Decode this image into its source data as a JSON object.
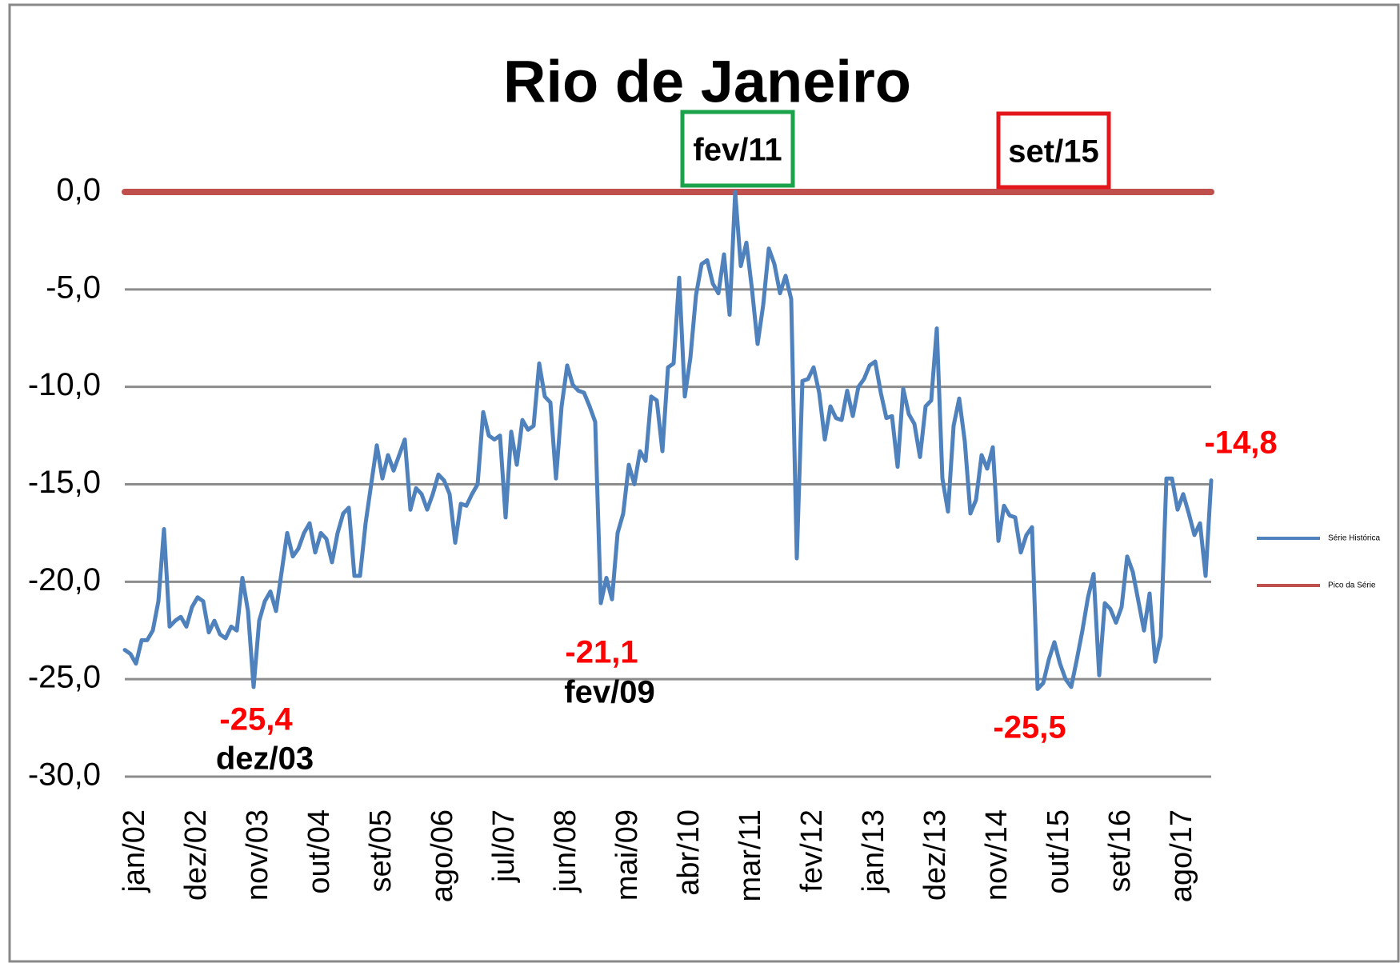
{
  "chart_data": {
    "type": "line",
    "title": "Rio de Janeiro",
    "categories": [
      "jan/02",
      null,
      null,
      null,
      null,
      null,
      null,
      null,
      null,
      null,
      null,
      "dez/02",
      null,
      null,
      null,
      null,
      null,
      null,
      null,
      null,
      null,
      null,
      "nov/03",
      null,
      null,
      null,
      null,
      null,
      null,
      null,
      null,
      null,
      null,
      "out/04",
      null,
      null,
      null,
      null,
      null,
      null,
      null,
      null,
      null,
      null,
      "set/05",
      null,
      null,
      null,
      null,
      null,
      null,
      null,
      null,
      null,
      null,
      "ago/06",
      null,
      null,
      null,
      null,
      null,
      null,
      null,
      null,
      null,
      null,
      "jul/07",
      null,
      null,
      null,
      null,
      null,
      null,
      null,
      null,
      null,
      null,
      "jun/08",
      null,
      null,
      null,
      null,
      null,
      null,
      null,
      null,
      null,
      null,
      "mai/09",
      null,
      null,
      null,
      null,
      null,
      null,
      null,
      null,
      null,
      null,
      "abr/10",
      null,
      null,
      null,
      null,
      null,
      null,
      null,
      null,
      null,
      null,
      "mar/11",
      null,
      null,
      null,
      null,
      null,
      null,
      null,
      null,
      null,
      null,
      "fev/12",
      null,
      null,
      null,
      null,
      null,
      null,
      null,
      null,
      null,
      null,
      "jan/13",
      null,
      null,
      null,
      null,
      null,
      null,
      null,
      null,
      null,
      null,
      "dez/13",
      null,
      null,
      null,
      null,
      null,
      null,
      null,
      null,
      null,
      null,
      "nov/14",
      null,
      null,
      null,
      null,
      null,
      null,
      null,
      null,
      null,
      null,
      "out/15",
      null,
      null,
      null,
      null,
      null,
      null,
      null,
      null,
      null,
      null,
      "set/16",
      null,
      null,
      null,
      null,
      null,
      null,
      null,
      null,
      null,
      null,
      "ago/17",
      null,
      null,
      null,
      null,
      null,
      null,
      null
    ],
    "series": [
      {
        "name": "Série Histórica",
        "color": "#4f81bd",
        "values": [
          -23.5,
          -23.7,
          -24.2,
          -23.0,
          -23.0,
          -22.5,
          -21.0,
          -17.3,
          -22.3,
          -22.0,
          -21.8,
          -22.3,
          -21.3,
          -20.8,
          -21.0,
          -22.6,
          -22.0,
          -22.7,
          -22.9,
          -22.3,
          -22.5,
          -19.8,
          -21.5,
          -25.4,
          -22.0,
          -21.0,
          -20.5,
          -21.5,
          -19.5,
          -17.5,
          -18.7,
          -18.3,
          -17.5,
          -17.0,
          -18.5,
          -17.5,
          -17.8,
          -19.0,
          -17.5,
          -16.5,
          -16.2,
          -19.7,
          -19.7,
          -17.0,
          -15.0,
          -13.0,
          -14.7,
          -13.5,
          -14.3,
          -13.5,
          -12.7,
          -16.3,
          -15.2,
          -15.5,
          -16.3,
          -15.5,
          -14.5,
          -14.8,
          -15.5,
          -18.0,
          -16.0,
          -16.1,
          -15.5,
          -15.0,
          -11.3,
          -12.5,
          -12.7,
          -12.5,
          -16.7,
          -12.3,
          -14.0,
          -11.7,
          -12.2,
          -12.0,
          -8.8,
          -10.5,
          -10.8,
          -14.7,
          -11.0,
          -8.9,
          -9.9,
          -10.2,
          -10.3,
          -11.0,
          -11.8,
          -21.1,
          -19.8,
          -20.9,
          -17.5,
          -16.5,
          -14.0,
          -15.0,
          -13.3,
          -13.8,
          -10.5,
          -10.7,
          -13.3,
          -9.0,
          -8.8,
          -4.4,
          -10.5,
          -8.5,
          -5.3,
          -3.7,
          -3.5,
          -4.7,
          -5.2,
          -3.2,
          -6.3,
          0.0,
          -3.8,
          -2.6,
          -5.0,
          -7.8,
          -5.8,
          -2.9,
          -3.7,
          -5.2,
          -4.3,
          -5.5,
          -18.8,
          -9.7,
          -9.6,
          -9.0,
          -10.3,
          -12.7,
          -11.0,
          -11.6,
          -11.7,
          -10.2,
          -11.5,
          -10.0,
          -9.6,
          -8.9,
          -8.7,
          -10.3,
          -11.6,
          -11.5,
          -14.1,
          -10.1,
          -11.4,
          -11.9,
          -13.6,
          -11.0,
          -10.7,
          -7.0,
          -14.7,
          -16.4,
          -12.0,
          -10.6,
          -12.8,
          -16.5,
          -15.8,
          -13.5,
          -14.2,
          -13.1,
          -17.9,
          -16.1,
          -16.6,
          -16.7,
          -18.5,
          -17.6,
          -17.2,
          -25.5,
          -25.2,
          -24.0,
          -23.1,
          -24.2,
          -25.0,
          -25.4,
          -24.0,
          -22.5,
          -20.8,
          -19.6,
          -24.8,
          -21.1,
          -21.4,
          -22.1,
          -21.3,
          -18.7,
          -19.5,
          -21.0,
          -22.5,
          -20.6,
          -24.1,
          -22.8,
          -14.7,
          -14.7,
          -16.3,
          -15.5,
          -16.5,
          -17.6,
          -17.0,
          -19.7,
          -14.8
        ],
        "value_labels": [
          null,
          null,
          null,
          null,
          null,
          null,
          null,
          null,
          null,
          null,
          null,
          null,
          null,
          null,
          null,
          null,
          null,
          null,
          null,
          null,
          null,
          null,
          null,
          "-25,4",
          null,
          null,
          null,
          null,
          null,
          null,
          null,
          null,
          null,
          null,
          null,
          null,
          null,
          null,
          null,
          null,
          null,
          null,
          null,
          null,
          null,
          null,
          null,
          null,
          null,
          null,
          null,
          null,
          null,
          null,
          null,
          null,
          null,
          null,
          null,
          null,
          null,
          null,
          null,
          null,
          null,
          null,
          null,
          null,
          null,
          null,
          null,
          null,
          null,
          null,
          null,
          null,
          null,
          null,
          null,
          null,
          null,
          null,
          null,
          null,
          null,
          "-21,1",
          null,
          null,
          null,
          null,
          null,
          null,
          null,
          null,
          null,
          null,
          null,
          null,
          null,
          null,
          null,
          null,
          null,
          null,
          null,
          null,
          null,
          null,
          null,
          null,
          null,
          null,
          null,
          null,
          null,
          null,
          null,
          null,
          null,
          null,
          null,
          null,
          null,
          null,
          null,
          null,
          null,
          null,
          null,
          null,
          null,
          null,
          null,
          null,
          null,
          null,
          null,
          null,
          null,
          null,
          null,
          null,
          null,
          null,
          null,
          null,
          null,
          null,
          null,
          null,
          null,
          null,
          null,
          null,
          null,
          null,
          null,
          null,
          null,
          null,
          null,
          null,
          null,
          "-25,5",
          null,
          null,
          null,
          null,
          null,
          null,
          null,
          null,
          null,
          null,
          null,
          null,
          null,
          null,
          null,
          null,
          null,
          null,
          null,
          null,
          null,
          null,
          null,
          null,
          null,
          null,
          null,
          null,
          null,
          null,
          "-14,8"
        ]
      },
      {
        "name": "Pico da Série",
        "color": "#c0504d",
        "values": [
          0,
          0,
          0,
          0,
          0,
          0,
          0,
          0,
          0,
          0,
          0,
          0,
          0,
          0,
          0,
          0,
          0,
          0,
          0,
          0,
          0,
          0,
          0,
          0,
          0,
          0,
          0,
          0,
          0,
          0,
          0,
          0,
          0,
          0,
          0,
          0,
          0,
          0,
          0,
          0,
          0,
          0,
          0,
          0,
          0,
          0,
          0,
          0,
          0,
          0,
          0,
          0,
          0,
          0,
          0,
          0,
          0,
          0,
          0,
          0,
          0,
          0,
          0,
          0,
          0,
          0,
          0,
          0,
          0,
          0,
          0,
          0,
          0,
          0,
          0,
          0,
          0,
          0,
          0,
          0,
          0,
          0,
          0,
          0,
          0,
          0,
          0,
          0,
          0,
          0,
          0,
          0,
          0,
          0,
          0,
          0,
          0,
          0,
          0,
          0,
          0,
          0,
          0,
          0,
          0,
          0,
          0,
          0,
          0,
          0,
          0,
          0,
          0,
          0,
          0,
          0,
          0,
          0,
          0,
          0,
          0,
          0,
          0,
          0,
          0,
          0,
          0,
          0,
          0,
          0,
          0,
          0,
          0,
          0,
          0,
          0,
          0,
          0,
          0,
          0,
          0,
          0,
          0,
          0,
          0,
          0,
          0,
          0,
          0,
          0,
          0,
          0,
          0,
          0,
          0,
          0,
          0,
          0,
          0,
          0,
          0,
          0,
          0,
          0,
          0,
          0,
          0,
          0,
          0,
          0,
          0,
          0,
          0,
          0,
          0,
          0,
          0,
          0,
          0,
          0,
          0,
          0,
          0,
          0,
          0,
          0,
          0,
          0,
          0,
          0,
          0,
          0,
          0,
          0,
          0
        ]
      }
    ],
    "annotations": [
      "dez/03",
      "fev/09",
      "fev/11",
      "set/15"
    ],
    "ylim": [
      -30,
      0
    ],
    "yticks": [
      {
        "value": -30,
        "label": "-30,0"
      },
      {
        "value": -25,
        "label": "-25,0"
      },
      {
        "value": -20,
        "label": "-20,0"
      },
      {
        "value": -15,
        "label": "-15,0"
      },
      {
        "value": -10,
        "label": "-10,0"
      },
      {
        "value": -5,
        "label": "-5,0"
      },
      {
        "value": 0,
        "label": "0,0"
      }
    ],
    "grid": true,
    "legend": "right"
  }
}
